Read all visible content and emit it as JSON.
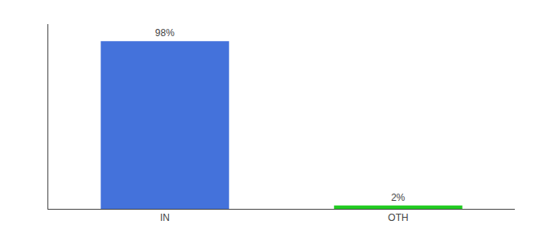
{
  "chart_data": {
    "type": "bar",
    "categories": [
      "IN",
      "OTH"
    ],
    "values": [
      98,
      2
    ],
    "value_labels": [
      "98%",
      "2%"
    ],
    "colors": [
      "#4472db",
      "#22cc22"
    ],
    "ylim": [
      0,
      108
    ],
    "data_labels": true,
    "tick_labels": "x",
    "grid": false
  }
}
